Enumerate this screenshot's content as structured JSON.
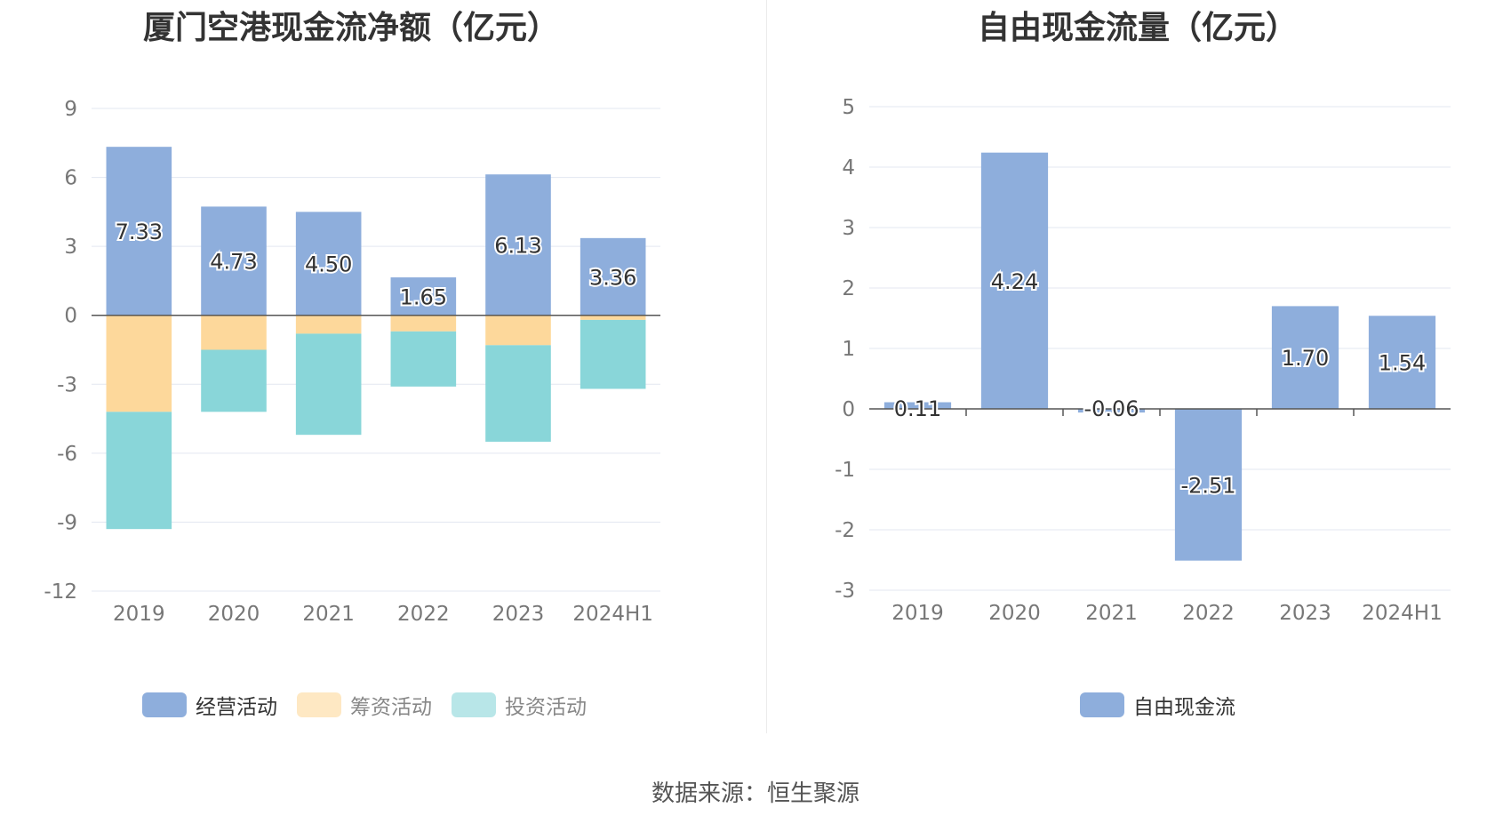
{
  "chart_data": [
    {
      "type": "bar",
      "stacked": true,
      "title": "厦门空港现金流净额（亿元）",
      "categories": [
        "2019",
        "2020",
        "2021",
        "2022",
        "2023",
        "2024H1"
      ],
      "series": [
        {
          "name": "经营活动",
          "color": "#8eaedc",
          "values": [
            7.33,
            4.73,
            4.5,
            1.65,
            6.13,
            3.36
          ]
        },
        {
          "name": "筹资活动",
          "color": "#fdd89b",
          "values": [
            -4.2,
            -1.5,
            -0.8,
            -0.7,
            -1.3,
            -0.2
          ]
        },
        {
          "name": "投资活动",
          "color": "#89d6d9",
          "values": [
            -5.1,
            -2.7,
            -4.4,
            -2.4,
            -4.2,
            -3.0
          ]
        }
      ],
      "data_labels": [
        "7.33",
        "4.73",
        "4.50",
        "1.65",
        "6.13",
        "3.36"
      ],
      "yticks": [
        9,
        6,
        3,
        0,
        -3,
        -6,
        -9,
        -12
      ],
      "ylim": [
        -12,
        9
      ],
      "grid": true,
      "legend_position": "bottom"
    },
    {
      "type": "bar",
      "title": "自由现金流量（亿元）",
      "categories": [
        "2019",
        "2020",
        "2021",
        "2022",
        "2023",
        "2024H1"
      ],
      "series": [
        {
          "name": "自由现金流",
          "color": "#8eaedc",
          "values": [
            0.11,
            4.24,
            -0.06,
            -2.51,
            1.7,
            1.54
          ]
        }
      ],
      "data_labels": [
        "0.11",
        "4.24",
        "-0.06",
        "-2.51",
        "1.70",
        "1.54"
      ],
      "yticks": [
        5,
        4,
        3,
        2,
        1,
        0,
        -1,
        -2,
        -3
      ],
      "ylim": [
        -3,
        5
      ],
      "grid": true,
      "legend_position": "bottom"
    }
  ],
  "footer": {
    "source": "数据来源：恒生聚源"
  }
}
